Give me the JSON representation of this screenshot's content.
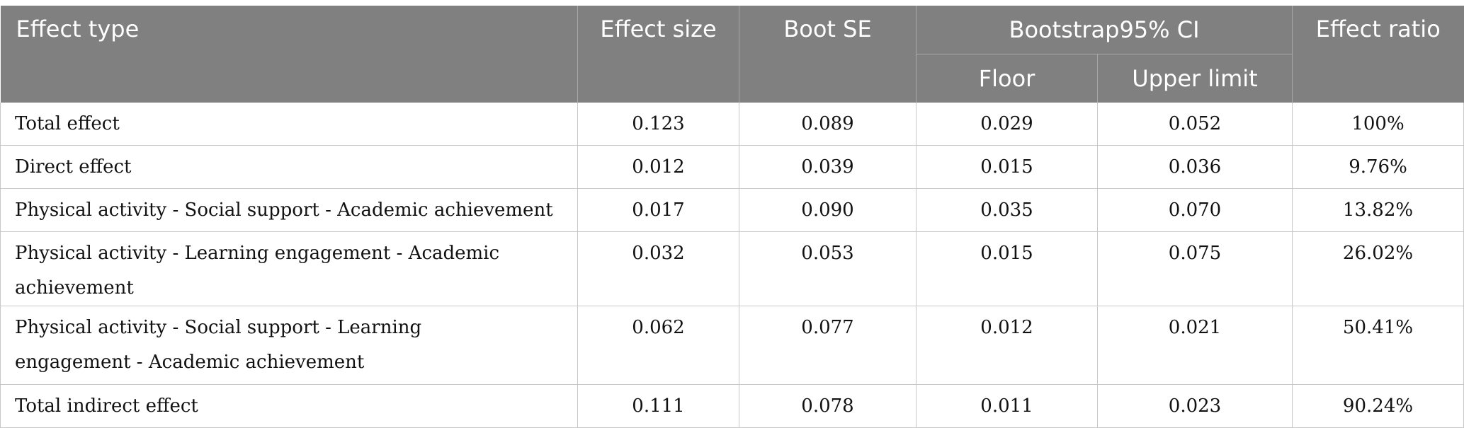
{
  "table": {
    "headers": {
      "effect_type": "Effect type",
      "effect_size": "Effect size",
      "boot_se": "Boot SE",
      "bootstrap_ci": "Bootstrap95% CI",
      "floor": "Floor",
      "upper_limit": "Upper limit",
      "effect_ratio": "Effect ratio"
    },
    "rows": [
      {
        "effect_type": "Total effect",
        "effect_size": "0.123",
        "boot_se": "0.089",
        "floor": "0.029",
        "upper_limit": "0.052",
        "effect_ratio": "100%"
      },
      {
        "effect_type": "Direct effect",
        "effect_size": "0.012",
        "boot_se": "0.039",
        "floor": "0.015",
        "upper_limit": "0.036",
        "effect_ratio": "9.76%"
      },
      {
        "effect_type": "Physical activity - Social support - Academic achievement",
        "effect_size": "0.017",
        "boot_se": "0.090",
        "floor": "0.035",
        "upper_limit": "0.070",
        "effect_ratio": "13.82%"
      },
      {
        "effect_type": "Physical activity - Learning engagement - Academic achievement",
        "effect_size": "0.032",
        "boot_se": "0.053",
        "floor": "0.015",
        "upper_limit": "0.075",
        "effect_ratio": "26.02%"
      },
      {
        "effect_type": "Physical activity - Social support - Learning engagement - Academic achievement",
        "effect_size": "0.062",
        "boot_se": "0.077",
        "floor": "0.012",
        "upper_limit": "0.021",
        "effect_ratio": "50.41%"
      },
      {
        "effect_type": "Total indirect effect",
        "effect_size": "0.111",
        "boot_se": "0.078",
        "floor": "0.011",
        "upper_limit": "0.023",
        "effect_ratio": "90.24%"
      }
    ]
  }
}
